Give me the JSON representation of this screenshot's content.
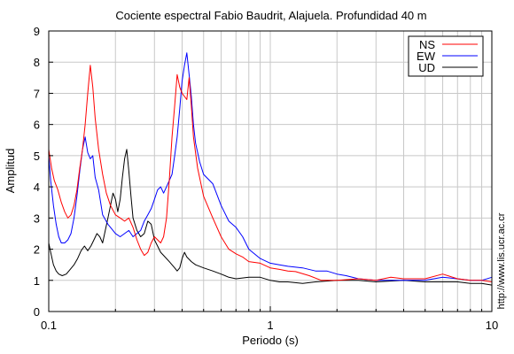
{
  "chart_data": {
    "type": "line",
    "title": "Cociente espectral Fabio Baudrit, Alajuela. Profundidad 40 m",
    "xlabel": "Periodo (s)",
    "ylabel": "Amplitud",
    "side_note": "http://www.lis.ucr.ac.cr",
    "xscale": "log",
    "xlim": [
      0.1,
      10
    ],
    "ylim": [
      0,
      9
    ],
    "x_ticks": [
      {
        "value": 0.1,
        "label": "0.1"
      },
      {
        "value": 1,
        "label": "1"
      },
      {
        "value": 10,
        "label": "10"
      }
    ],
    "y_ticks": [
      0,
      1,
      2,
      3,
      4,
      5,
      6,
      7,
      8,
      9
    ],
    "grid": true,
    "legend": "top-right",
    "series": [
      {
        "name": "NS",
        "color": "#ff0000",
        "points": [
          [
            0.1,
            5.2
          ],
          [
            0.103,
            4.6
          ],
          [
            0.106,
            4.2
          ],
          [
            0.11,
            3.9
          ],
          [
            0.114,
            3.5
          ],
          [
            0.118,
            3.2
          ],
          [
            0.122,
            3.0
          ],
          [
            0.126,
            3.1
          ],
          [
            0.13,
            3.4
          ],
          [
            0.134,
            3.9
          ],
          [
            0.138,
            4.6
          ],
          [
            0.142,
            5.2
          ],
          [
            0.146,
            6.0
          ],
          [
            0.15,
            7.0
          ],
          [
            0.154,
            7.9
          ],
          [
            0.158,
            7.2
          ],
          [
            0.162,
            6.2
          ],
          [
            0.168,
            5.2
          ],
          [
            0.175,
            4.4
          ],
          [
            0.182,
            3.8
          ],
          [
            0.19,
            3.4
          ],
          [
            0.2,
            3.1
          ],
          [
            0.21,
            3.0
          ],
          [
            0.22,
            2.9
          ],
          [
            0.23,
            3.0
          ],
          [
            0.24,
            2.7
          ],
          [
            0.25,
            2.3
          ],
          [
            0.26,
            2.0
          ],
          [
            0.27,
            1.8
          ],
          [
            0.28,
            1.9
          ],
          [
            0.29,
            2.2
          ],
          [
            0.3,
            2.4
          ],
          [
            0.31,
            2.3
          ],
          [
            0.32,
            2.2
          ],
          [
            0.33,
            2.4
          ],
          [
            0.34,
            3.0
          ],
          [
            0.35,
            4.2
          ],
          [
            0.36,
            5.6
          ],
          [
            0.37,
            6.6
          ],
          [
            0.38,
            7.6
          ],
          [
            0.39,
            7.2
          ],
          [
            0.4,
            7.0
          ],
          [
            0.41,
            6.9
          ],
          [
            0.42,
            6.8
          ],
          [
            0.43,
            7.5
          ],
          [
            0.44,
            6.6
          ],
          [
            0.45,
            5.6
          ],
          [
            0.47,
            4.6
          ],
          [
            0.5,
            3.7
          ],
          [
            0.55,
            3.0
          ],
          [
            0.6,
            2.4
          ],
          [
            0.65,
            2.0
          ],
          [
            0.7,
            1.85
          ],
          [
            0.75,
            1.75
          ],
          [
            0.8,
            1.6
          ],
          [
            0.9,
            1.55
          ],
          [
            1.0,
            1.4
          ],
          [
            1.1,
            1.35
          ],
          [
            1.2,
            1.3
          ],
          [
            1.3,
            1.28
          ],
          [
            1.5,
            1.15
          ],
          [
            1.7,
            1.0
          ],
          [
            2.0,
            1.0
          ],
          [
            2.5,
            1.05
          ],
          [
            3.0,
            1.0
          ],
          [
            3.5,
            1.1
          ],
          [
            4.0,
            1.05
          ],
          [
            5.0,
            1.05
          ],
          [
            6.0,
            1.2
          ],
          [
            7.0,
            1.05
          ],
          [
            8.0,
            1.0
          ],
          [
            9.0,
            1.0
          ],
          [
            10.0,
            0.95
          ]
        ]
      },
      {
        "name": "EW",
        "color": "#0000ff",
        "points": [
          [
            0.1,
            5.0
          ],
          [
            0.102,
            4.2
          ],
          [
            0.105,
            3.4
          ],
          [
            0.108,
            2.8
          ],
          [
            0.111,
            2.4
          ],
          [
            0.114,
            2.2
          ],
          [
            0.118,
            2.2
          ],
          [
            0.122,
            2.3
          ],
          [
            0.126,
            2.5
          ],
          [
            0.13,
            3.0
          ],
          [
            0.134,
            3.7
          ],
          [
            0.138,
            4.5
          ],
          [
            0.142,
            5.2
          ],
          [
            0.146,
            5.6
          ],
          [
            0.15,
            5.1
          ],
          [
            0.154,
            4.9
          ],
          [
            0.158,
            5.0
          ],
          [
            0.162,
            4.3
          ],
          [
            0.168,
            3.9
          ],
          [
            0.175,
            3.1
          ],
          [
            0.185,
            2.8
          ],
          [
            0.195,
            2.6
          ],
          [
            0.2,
            2.5
          ],
          [
            0.21,
            2.4
          ],
          [
            0.22,
            2.5
          ],
          [
            0.23,
            2.6
          ],
          [
            0.24,
            2.4
          ],
          [
            0.25,
            2.5
          ],
          [
            0.26,
            2.6
          ],
          [
            0.27,
            2.9
          ],
          [
            0.28,
            3.1
          ],
          [
            0.29,
            3.3
          ],
          [
            0.3,
            3.6
          ],
          [
            0.31,
            3.9
          ],
          [
            0.32,
            4.0
          ],
          [
            0.33,
            3.8
          ],
          [
            0.34,
            4.0
          ],
          [
            0.35,
            4.2
          ],
          [
            0.36,
            4.4
          ],
          [
            0.37,
            5.0
          ],
          [
            0.38,
            5.6
          ],
          [
            0.39,
            6.5
          ],
          [
            0.4,
            7.4
          ],
          [
            0.41,
            7.9
          ],
          [
            0.42,
            8.3
          ],
          [
            0.43,
            7.6
          ],
          [
            0.44,
            6.9
          ],
          [
            0.45,
            6.0
          ],
          [
            0.46,
            5.4
          ],
          [
            0.48,
            4.8
          ],
          [
            0.5,
            4.4
          ],
          [
            0.55,
            4.1
          ],
          [
            0.6,
            3.4
          ],
          [
            0.65,
            2.9
          ],
          [
            0.7,
            2.7
          ],
          [
            0.75,
            2.4
          ],
          [
            0.8,
            2.0
          ],
          [
            0.9,
            1.7
          ],
          [
            1.0,
            1.55
          ],
          [
            1.1,
            1.5
          ],
          [
            1.2,
            1.45
          ],
          [
            1.4,
            1.4
          ],
          [
            1.6,
            1.3
          ],
          [
            1.8,
            1.3
          ],
          [
            2.0,
            1.2
          ],
          [
            2.2,
            1.15
          ],
          [
            2.5,
            1.05
          ],
          [
            3.0,
            1.0
          ],
          [
            3.5,
            1.0
          ],
          [
            4.0,
            1.0
          ],
          [
            5.0,
            1.0
          ],
          [
            6.0,
            1.1
          ],
          [
            7.0,
            1.05
          ],
          [
            8.0,
            1.0
          ],
          [
            9.0,
            1.0
          ],
          [
            10.0,
            1.1
          ]
        ]
      },
      {
        "name": "UD",
        "color": "#000000",
        "points": [
          [
            0.1,
            2.2
          ],
          [
            0.102,
            1.9
          ],
          [
            0.105,
            1.5
          ],
          [
            0.108,
            1.3
          ],
          [
            0.111,
            1.2
          ],
          [
            0.115,
            1.15
          ],
          [
            0.12,
            1.2
          ],
          [
            0.125,
            1.35
          ],
          [
            0.13,
            1.5
          ],
          [
            0.135,
            1.7
          ],
          [
            0.14,
            1.95
          ],
          [
            0.145,
            2.1
          ],
          [
            0.15,
            1.95
          ],
          [
            0.155,
            2.1
          ],
          [
            0.16,
            2.3
          ],
          [
            0.165,
            2.5
          ],
          [
            0.17,
            2.4
          ],
          [
            0.175,
            2.2
          ],
          [
            0.18,
            2.6
          ],
          [
            0.185,
            3.0
          ],
          [
            0.19,
            3.4
          ],
          [
            0.195,
            3.8
          ],
          [
            0.2,
            3.6
          ],
          [
            0.205,
            3.2
          ],
          [
            0.21,
            3.6
          ],
          [
            0.215,
            4.3
          ],
          [
            0.22,
            4.9
          ],
          [
            0.225,
            5.2
          ],
          [
            0.23,
            4.5
          ],
          [
            0.235,
            3.7
          ],
          [
            0.24,
            3.0
          ],
          [
            0.25,
            2.6
          ],
          [
            0.26,
            2.4
          ],
          [
            0.27,
            2.5
          ],
          [
            0.28,
            2.9
          ],
          [
            0.29,
            2.8
          ],
          [
            0.3,
            2.3
          ],
          [
            0.31,
            2.1
          ],
          [
            0.32,
            1.9
          ],
          [
            0.33,
            1.8
          ],
          [
            0.35,
            1.6
          ],
          [
            0.37,
            1.4
          ],
          [
            0.38,
            1.3
          ],
          [
            0.39,
            1.4
          ],
          [
            0.4,
            1.7
          ],
          [
            0.41,
            1.9
          ],
          [
            0.42,
            1.75
          ],
          [
            0.44,
            1.6
          ],
          [
            0.46,
            1.5
          ],
          [
            0.5,
            1.4
          ],
          [
            0.55,
            1.3
          ],
          [
            0.6,
            1.2
          ],
          [
            0.65,
            1.1
          ],
          [
            0.7,
            1.05
          ],
          [
            0.8,
            1.1
          ],
          [
            0.9,
            1.1
          ],
          [
            1.0,
            1.0
          ],
          [
            1.1,
            0.95
          ],
          [
            1.2,
            0.95
          ],
          [
            1.4,
            0.9
          ],
          [
            1.6,
            0.95
          ],
          [
            2.0,
            1.0
          ],
          [
            2.5,
            1.0
          ],
          [
            3.0,
            0.95
          ],
          [
            4.0,
            1.0
          ],
          [
            5.0,
            0.95
          ],
          [
            6.0,
            0.95
          ],
          [
            7.0,
            0.95
          ],
          [
            8.0,
            0.9
          ],
          [
            9.0,
            0.9
          ],
          [
            10.0,
            0.85
          ]
        ]
      }
    ]
  }
}
